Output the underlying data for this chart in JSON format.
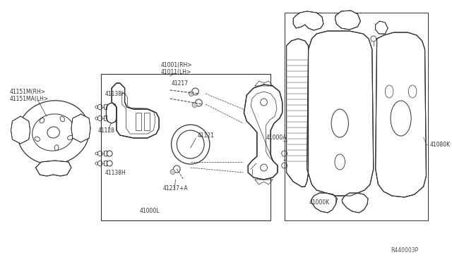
{
  "bg_color": "#ffffff",
  "line_color": "#303030",
  "label_color": "#303030",
  "fig_width": 6.4,
  "fig_height": 3.72,
  "dpi": 100,
  "labels": {
    "rotor_rh": "41151M(RH>",
    "rotor_lh": "41151MA(LH>",
    "caliper_rh": "41001(RH>",
    "caliper_lh": "41011(LH>",
    "bolt_top": "41138H",
    "bolt_bot": "41138H",
    "pin_top": "41217",
    "pin_bot": "41217+A",
    "bracket": "41128",
    "piston": "41121",
    "assy_label": "41000L",
    "pad_assy": "41000A",
    "pad_kit": "41000K",
    "shim": "41080K",
    "ref": "R440003P"
  }
}
